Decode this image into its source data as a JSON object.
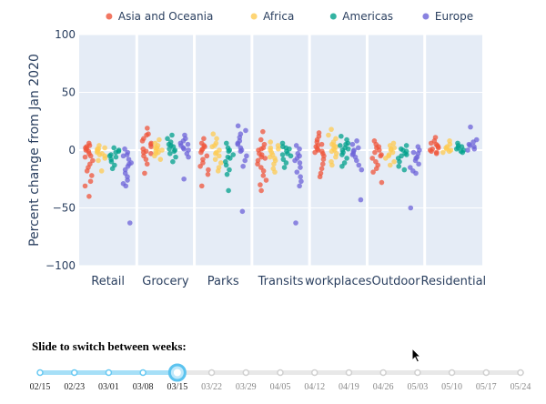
{
  "chart_data": {
    "type": "scatter",
    "ylabel": "Percent change from Jan 2020",
    "ylim": [
      -100,
      100
    ],
    "yticks": [
      100,
      50,
      0,
      -50,
      -100
    ],
    "categories": [
      "Retail",
      "Grocery",
      "Parks",
      "Transits",
      "workplaces",
      "Outdoor",
      "Residential"
    ],
    "legend_position": "top",
    "series": [
      {
        "name": "Asia and Oceania",
        "color": "#ef553b",
        "values": [
          [
            6,
            4,
            2,
            1,
            -1,
            -3,
            -6,
            -9,
            -12,
            -15,
            -18,
            -22,
            -27,
            -31,
            -40,
            3,
            -5,
            0
          ],
          [
            19,
            13,
            10,
            8,
            5,
            3,
            1,
            -1,
            -3,
            -5,
            -8,
            -12,
            14,
            -20,
            -2,
            6
          ],
          [
            10,
            6,
            3,
            1,
            -2,
            -5,
            -8,
            -11,
            -14,
            -17,
            -31,
            -21,
            4,
            0
          ],
          [
            16,
            9,
            5,
            2,
            0,
            -3,
            -6,
            -9,
            -12,
            -15,
            -18,
            -22,
            -26,
            -30,
            -35,
            -4,
            1,
            -7
          ],
          [
            15,
            12,
            9,
            7,
            5,
            3,
            1,
            -1,
            -3,
            -5,
            -8,
            -12,
            -16,
            -20,
            -23,
            -2,
            4,
            0
          ],
          [
            8,
            5,
            3,
            0,
            -2,
            -4,
            -7,
            -10,
            -13,
            -16,
            -19,
            -28,
            2,
            -5
          ],
          [
            11,
            8,
            6,
            4,
            2,
            1,
            0,
            -1,
            -2,
            -3,
            5,
            3
          ]
        ]
      },
      {
        "name": "Africa",
        "color": "#fecb52",
        "values": [
          [
            4,
            2,
            1,
            0,
            -1,
            -2,
            -3,
            -5,
            -7,
            -9,
            -18,
            1,
            -4
          ],
          [
            9,
            6,
            4,
            2,
            1,
            0,
            -1,
            -3,
            -5,
            -8,
            2,
            -2
          ],
          [
            14,
            10,
            6,
            3,
            0,
            -2,
            -5,
            -8,
            -11,
            -15,
            -18,
            4,
            -3
          ],
          [
            7,
            4,
            2,
            0,
            -2,
            -4,
            -6,
            -9,
            -12,
            -16,
            -19,
            1,
            -7
          ],
          [
            18,
            13,
            10,
            7,
            5,
            3,
            1,
            -1,
            -3,
            -6,
            -10,
            -13,
            4,
            0
          ],
          [
            6,
            4,
            2,
            0,
            -2,
            -4,
            -7,
            -10,
            -13,
            1,
            -5
          ],
          [
            8,
            5,
            3,
            1,
            0,
            -1,
            -2,
            2
          ]
        ]
      },
      {
        "name": "Americas",
        "color": "#00a08b",
        "values": [
          [
            2,
            0,
            -2,
            -4,
            -6,
            -8,
            -10,
            -13,
            -16,
            -5,
            -1
          ],
          [
            13,
            10,
            7,
            5,
            3,
            1,
            -1,
            -3,
            -6,
            -10,
            4,
            0
          ],
          [
            6,
            2,
            -1,
            -4,
            -7,
            -10,
            -13,
            -17,
            -21,
            -35,
            0,
            -6
          ],
          [
            6,
            3,
            1,
            -1,
            -3,
            -5,
            -8,
            -11,
            -15,
            2,
            -4
          ],
          [
            12,
            9,
            6,
            4,
            2,
            0,
            -2,
            -4,
            -7,
            -11,
            -14,
            5,
            1
          ],
          [
            4,
            1,
            -1,
            -3,
            -5,
            -7,
            -10,
            -14,
            -17,
            0,
            -4
          ],
          [
            6,
            4,
            2,
            1,
            0,
            -1,
            -2,
            3
          ]
        ]
      },
      {
        "name": "Europe",
        "color": "#6c63d8",
        "values": [
          [
            1,
            -2,
            -5,
            -8,
            -11,
            -14,
            -17,
            -20,
            -23,
            -26,
            -29,
            -31,
            -63,
            -12,
            -4
          ],
          [
            13,
            10,
            8,
            6,
            4,
            2,
            0,
            -3,
            -6,
            -25,
            5,
            1
          ],
          [
            21,
            17,
            14,
            11,
            8,
            5,
            2,
            -1,
            -5,
            -9,
            -14,
            -53,
            6,
            0
          ],
          [
            4,
            1,
            -3,
            -7,
            -11,
            -15,
            -19,
            -23,
            -27,
            -31,
            -63,
            -9,
            -5
          ],
          [
            8,
            5,
            2,
            -1,
            -3,
            -6,
            -9,
            -13,
            -17,
            -43,
            0,
            -4
          ],
          [
            3,
            0,
            -3,
            -6,
            -9,
            -12,
            -15,
            -18,
            -20,
            -50,
            -7,
            -2
          ],
          [
            20,
            9,
            7,
            5,
            3,
            1,
            0,
            4
          ]
        ]
      }
    ]
  },
  "slider": {
    "title": "Slide to switch between weeks:",
    "steps": [
      "02/15",
      "02/23",
      "03/01",
      "03/08",
      "03/15",
      "03/22",
      "03/29",
      "04/05",
      "04/12",
      "04/19",
      "04/26",
      "05/03",
      "05/10",
      "05/17",
      "05/24"
    ],
    "active_index": 4
  }
}
